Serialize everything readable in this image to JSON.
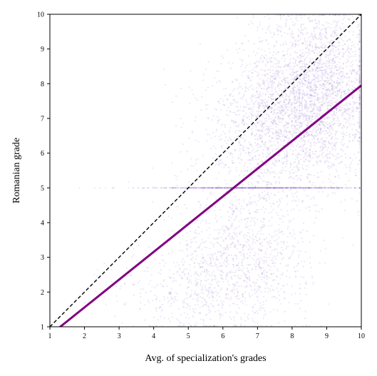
{
  "chart_data": {
    "type": "scatter",
    "title": "",
    "xlabel": "Avg. of specialization's grades",
    "ylabel": "Romanian grade",
    "xlim": [
      1,
      10
    ],
    "ylim": [
      1,
      10
    ],
    "xticks": [
      "1",
      "2",
      "3",
      "4",
      "5",
      "6",
      "7",
      "8",
      "9",
      "10"
    ],
    "yticks": [
      "1",
      "2",
      "3",
      "4",
      "5",
      "6",
      "7",
      "8",
      "9",
      "10"
    ],
    "grid": false,
    "legend": "none",
    "series": [
      {
        "kind": "scatter",
        "color": "#9b7fd4",
        "opacity": 0.18,
        "description_points": "dense cloud of student grades",
        "clusters": [
          {
            "x_center": 8.7,
            "y_center": 7.8,
            "x_spread": 0.9,
            "y_spread": 1.2,
            "count": 2600
          },
          {
            "x_center": 7.3,
            "y_center": 6.6,
            "x_spread": 1.0,
            "y_spread": 1.1,
            "count": 1200
          },
          {
            "x_center": 6.5,
            "y_center": 3.0,
            "x_spread": 1.0,
            "y_spread": 1.0,
            "count": 1100
          },
          {
            "x_center": 5.0,
            "y_center": 2.0,
            "x_spread": 1.1,
            "y_spread": 0.6,
            "count": 350
          },
          {
            "x_center": 7.0,
            "y_center": 5.0,
            "x_spread": 1.5,
            "y_spread": 0.0,
            "count": 900
          }
        ]
      },
      {
        "kind": "line",
        "color": "#800080",
        "style": "solid",
        "x": [
          1,
          10
        ],
        "y": [
          0.76,
          7.95
        ]
      },
      {
        "kind": "line",
        "color": "#000000",
        "style": "dashed",
        "x": [
          1,
          10
        ],
        "y": [
          1,
          10
        ]
      }
    ]
  }
}
